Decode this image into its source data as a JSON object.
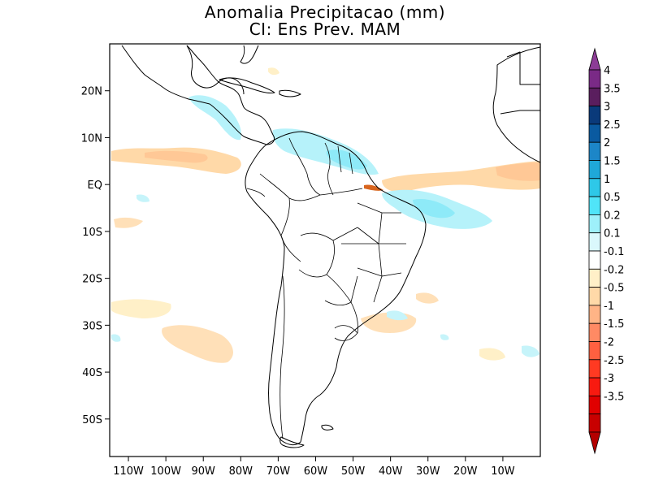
{
  "title": {
    "line1": "Anomalia Precipitacao (mm)",
    "line2": "CI: Ens Prev. MAM"
  },
  "map": {
    "region": "South America and adjacent oceans",
    "lon_range": [
      -115,
      0
    ],
    "lat_range": [
      -58,
      30
    ],
    "lat_labels": [
      "20N",
      "10N",
      "EQ",
      "10S",
      "20S",
      "30S",
      "40S",
      "50S"
    ],
    "lon_labels": [
      "110W",
      "100W",
      "90W",
      "80W",
      "70W",
      "60W",
      "50W",
      "40W",
      "30W",
      "20W",
      "10W"
    ]
  },
  "colorbar": {
    "labels": [
      "4",
      "3.5",
      "3",
      "2.5",
      "2",
      "1.5",
      "1",
      "0.5",
      "0.2",
      "0.1",
      "-0.1",
      "-0.2",
      "-0.5",
      "-1",
      "-1.5",
      "-2",
      "-2.5",
      "-3",
      "-3.5"
    ],
    "colors": [
      "#7a2a86",
      "#5a1e5e",
      "#0a3a7a",
      "#0a5aa0",
      "#1c86c8",
      "#1fa8d8",
      "#2ec8e8",
      "#50e4f8",
      "#9ef0fa",
      "#daf8fc",
      "#ffffff",
      "#fff0c8",
      "#ffd9a8",
      "#ffb486",
      "#ff8a64",
      "#ff6040",
      "#ff3a22",
      "#f81a10",
      "#e00000",
      "#c80000"
    ],
    "top_arrow_color": "#8c3c96",
    "bottom_arrow_color": "#b40000"
  },
  "colors": {
    "frame": "#000000",
    "coast": "#000000"
  }
}
